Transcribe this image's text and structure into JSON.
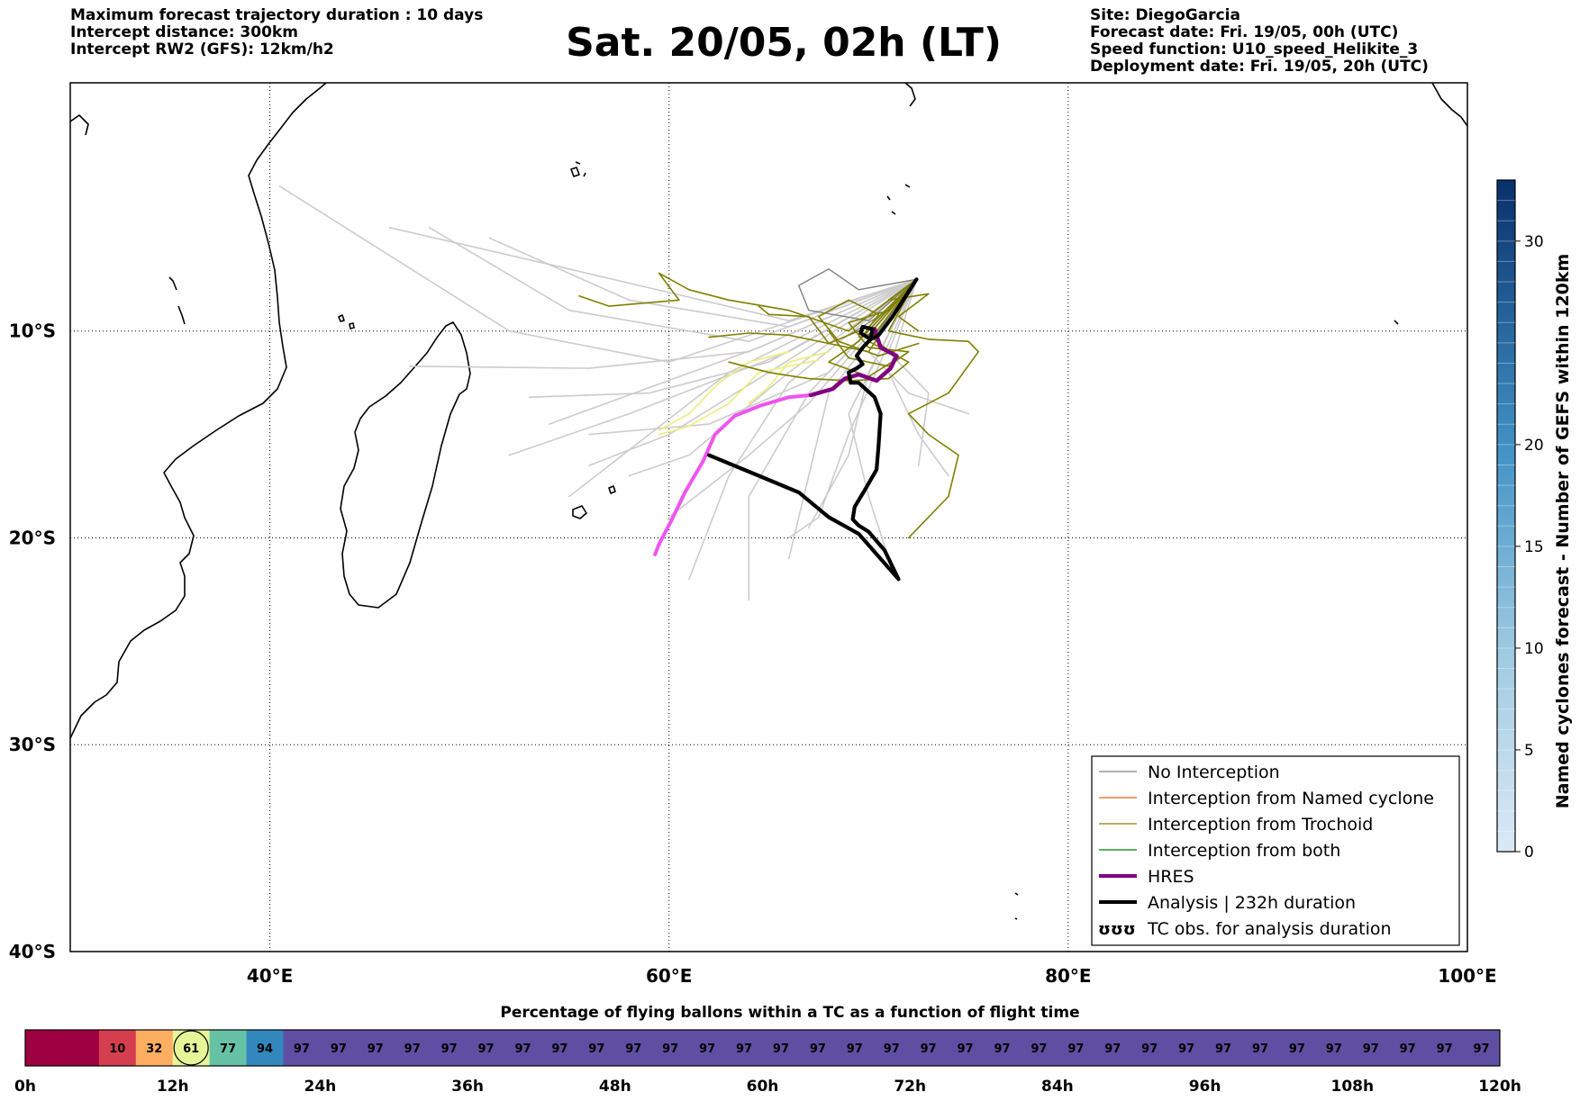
{
  "header": {
    "left_lines": [
      "Maximum forecast trajectory duration : 10 days",
      "Intercept distance: 300km",
      "Intercept RW2 (GFS):  12km/h2"
    ],
    "title": "Sat. 20/05, 02h (LT)",
    "right_lines": [
      "Site: DiegoGarcia",
      "Forecast date: Fri. 19/05, 00h (UTC)",
      "Speed function: U10_speed_Helikite_3",
      "Deployment date: Fri. 19/05, 20h (UTC)"
    ]
  },
  "map": {
    "lon_range": [
      30,
      100
    ],
    "lat_range": [
      -40,
      2
    ],
    "lon_ticks": [
      {
        "value": 40,
        "label": "40°E"
      },
      {
        "value": 60,
        "label": "60°E"
      },
      {
        "value": 80,
        "label": "80°E"
      },
      {
        "value": 100,
        "label": "100°E"
      }
    ],
    "lat_ticks": [
      {
        "value": -10,
        "label": "10°S"
      },
      {
        "value": -20,
        "label": "20°S"
      },
      {
        "value": -30,
        "label": "30°S"
      },
      {
        "value": -40,
        "label": "40°S"
      }
    ],
    "land_color": "#000000",
    "tracks": {
      "no_interception": [
        [
          [
            72.4,
            -7.5
          ],
          [
            64.5,
            -10.8
          ],
          [
            54,
            -14.5
          ]
        ],
        [
          [
            72.4,
            -7.5
          ],
          [
            63,
            -12
          ],
          [
            55,
            -18
          ]
        ],
        [
          [
            72.4,
            -7.5
          ],
          [
            66,
            -12
          ],
          [
            61,
            -16
          ],
          [
            58,
            -17
          ]
        ],
        [
          [
            72.4,
            -7.5
          ],
          [
            65,
            -11.5
          ],
          [
            59,
            -13
          ],
          [
            53,
            -13.2
          ]
        ],
        [
          [
            72.4,
            -7.5
          ],
          [
            66,
            -12.5
          ],
          [
            63,
            -17
          ],
          [
            61,
            -22
          ]
        ],
        [
          [
            72.4,
            -7.5
          ],
          [
            67,
            -13
          ],
          [
            64,
            -18
          ],
          [
            64,
            -23
          ]
        ],
        [
          [
            72.4,
            -7.5
          ],
          [
            68,
            -13
          ],
          [
            67,
            -17
          ],
          [
            66,
            -21
          ]
        ],
        [
          [
            72.4,
            -7.5
          ],
          [
            69,
            -14
          ],
          [
            70,
            -18
          ],
          [
            71,
            -21
          ]
        ],
        [
          [
            72.4,
            -7.5
          ],
          [
            71,
            -12
          ],
          [
            72.5,
            -15
          ],
          [
            74,
            -17
          ]
        ],
        [
          [
            72.4,
            -7.5
          ],
          [
            70,
            -11
          ],
          [
            72,
            -13
          ],
          [
            75,
            -14
          ]
        ],
        [
          [
            72.4,
            -7.5
          ],
          [
            66,
            -9.5
          ],
          [
            55,
            -7
          ],
          [
            46,
            -5
          ]
        ],
        [
          [
            72.4,
            -7.5
          ],
          [
            66,
            -9.8
          ],
          [
            58,
            -8.5
          ],
          [
            51,
            -5.5
          ]
        ],
        [
          [
            72.4,
            -7.5
          ],
          [
            64,
            -10.5
          ],
          [
            55,
            -9
          ],
          [
            48,
            -5
          ]
        ],
        [
          [
            72.4,
            -7.5
          ],
          [
            60,
            -11.5
          ],
          [
            52,
            -10
          ],
          [
            40.5,
            -3
          ]
        ],
        [
          [
            72.4,
            -7.5
          ],
          [
            64,
            -11
          ],
          [
            56,
            -11.8
          ],
          [
            47,
            -11.7
          ]
        ],
        [
          [
            72.4,
            -7.5
          ],
          [
            65,
            -12
          ],
          [
            60,
            -15
          ],
          [
            56,
            -16.5
          ]
        ],
        [
          [
            72.4,
            -7.5
          ],
          [
            67,
            -13.5
          ],
          [
            64,
            -16
          ],
          [
            60,
            -19
          ]
        ],
        [
          [
            72.4,
            -7.5
          ],
          [
            69,
            -15
          ],
          [
            67.5,
            -19
          ],
          [
            66,
            -20
          ]
        ],
        [
          [
            72.4,
            -7.5
          ],
          [
            66,
            -11
          ],
          [
            58,
            -14
          ],
          [
            52,
            -16
          ]
        ],
        [
          [
            72.4,
            -7.5
          ],
          [
            68,
            -12
          ],
          [
            62,
            -14.5
          ],
          [
            56,
            -15
          ]
        ],
        [
          [
            72.4,
            -7.5
          ],
          [
            70,
            -12
          ],
          [
            69,
            -16
          ],
          [
            67,
            -19.5
          ]
        ],
        [
          [
            72.4,
            -7.5
          ],
          [
            71,
            -11
          ],
          [
            73,
            -13
          ],
          [
            72.5,
            -16.5
          ]
        ]
      ],
      "dark_gray": [
        [
          [
            72.4,
            -7.5
          ],
          [
            70,
            -9.5
          ],
          [
            67,
            -9
          ],
          [
            66.5,
            -7.8
          ],
          [
            68,
            -7
          ],
          [
            69.5,
            -8
          ],
          [
            72.4,
            -7.5
          ]
        ],
        [
          [
            72.4,
            -7.5
          ],
          [
            70.5,
            -10
          ],
          [
            69.5,
            -10.3
          ]
        ],
        [
          [
            72.4,
            -7.5
          ],
          [
            71,
            -9
          ],
          [
            69,
            -10.2
          ]
        ]
      ],
      "trochoid": [
        [
          [
            72.4,
            -7.5
          ],
          [
            69,
            -10
          ],
          [
            66,
            -9
          ],
          [
            63,
            -8.5
          ],
          [
            61,
            -8
          ],
          [
            59.5,
            -7.2
          ],
          [
            60.5,
            -8.5
          ],
          [
            57,
            -8.8
          ],
          [
            55.5,
            -8.3
          ]
        ],
        [
          [
            72.4,
            -7.5
          ],
          [
            70,
            -9.8
          ],
          [
            68,
            -10.6
          ],
          [
            66,
            -10.2
          ],
          [
            64,
            -10.1
          ],
          [
            62,
            -10.3
          ]
        ],
        [
          [
            72.4,
            -7.5
          ],
          [
            71,
            -10
          ],
          [
            73,
            -10.4
          ],
          [
            75,
            -10.5
          ],
          [
            75.5,
            -11
          ],
          [
            74,
            -13
          ],
          [
            72,
            -14
          ],
          [
            73,
            -15
          ],
          [
            74.5,
            -16
          ],
          [
            74,
            -18
          ],
          [
            72,
            -20
          ]
        ],
        [
          [
            72.4,
            -7.5
          ],
          [
            70,
            -10.5
          ],
          [
            72,
            -11.5
          ],
          [
            71,
            -12.3
          ],
          [
            69,
            -12.4
          ],
          [
            67,
            -12.3
          ],
          [
            65,
            -12
          ],
          [
            63,
            -11.5
          ]
        ],
        [
          [
            72.4,
            -7.5
          ],
          [
            70,
            -11
          ],
          [
            68,
            -10.6
          ],
          [
            67,
            -9.3
          ],
          [
            65,
            -9.2
          ],
          [
            64.5,
            -8.8
          ]
        ],
        [
          [
            72.4,
            -7.5
          ],
          [
            71,
            -8.5
          ],
          [
            73,
            -8.2
          ],
          [
            71.5,
            -9.3
          ],
          [
            72.5,
            -10
          ]
        ],
        [
          [
            72.4,
            -7.5
          ],
          [
            69.5,
            -10.5
          ],
          [
            70.5,
            -9.2
          ],
          [
            69,
            -8.5
          ],
          [
            67.5,
            -9.3
          ],
          [
            68.5,
            -10.5
          ],
          [
            70.5,
            -11.2
          ],
          [
            72.5,
            -10.6
          ]
        ],
        [
          [
            72.4,
            -7.5
          ],
          [
            70,
            -10.2
          ],
          [
            71.5,
            -11.3
          ],
          [
            70,
            -12.2
          ],
          [
            68,
            -11.5
          ],
          [
            69.5,
            -10.5
          ]
        ],
        [
          [
            72.4,
            -7.5
          ],
          [
            71,
            -9
          ],
          [
            69,
            -9.6
          ],
          [
            70,
            -10.8
          ],
          [
            72,
            -11
          ],
          [
            71,
            -11.7
          ],
          [
            69,
            -11.3
          ],
          [
            68,
            -10
          ]
        ]
      ],
      "light_yellow": [
        [
          [
            68,
            -11
          ],
          [
            66,
            -11.5
          ],
          [
            65,
            -12.7
          ],
          [
            64,
            -13.5
          ]
        ],
        [
          [
            67.5,
            -11.4
          ],
          [
            64.5,
            -12
          ],
          [
            63,
            -13.5
          ],
          [
            61,
            -14.6
          ],
          [
            59.5,
            -15
          ]
        ],
        [
          [
            66,
            -11
          ],
          [
            64,
            -11.5
          ],
          [
            62.5,
            -12.5
          ],
          [
            61,
            -14
          ],
          [
            59.5,
            -14.8
          ]
        ]
      ],
      "hres": [
        [
          70.3,
          -9.9
        ],
        [
          70.6,
          -10.8
        ],
        [
          71.4,
          -11.2
        ],
        [
          71.1,
          -11.8
        ],
        [
          70.4,
          -12.4
        ],
        [
          69.5,
          -12.1
        ],
        [
          68.8,
          -12.3
        ],
        [
          68.2,
          -12.8
        ],
        [
          67.1,
          -13.1
        ],
        [
          66,
          -13.2
        ],
        [
          64.6,
          -13.6
        ],
        [
          63.3,
          -14.1
        ],
        [
          62.3,
          -15
        ],
        [
          61.7,
          -16.3
        ],
        [
          60.8,
          -17.8
        ],
        [
          60.1,
          -19.2
        ],
        [
          59.5,
          -20.3
        ],
        [
          59.3,
          -20.8
        ]
      ],
      "analysis": [
        [
          72.4,
          -7.5
        ],
        [
          71.2,
          -9.3
        ],
        [
          70.5,
          -10.2
        ],
        [
          70.1,
          -10.4
        ],
        [
          69.6,
          -10.1
        ],
        [
          69.7,
          -9.8
        ],
        [
          70.2,
          -9.9
        ],
        [
          70.1,
          -10.4
        ],
        [
          69.7,
          -10.8
        ],
        [
          69.4,
          -11.2
        ],
        [
          69.7,
          -11.6
        ],
        [
          69.4,
          -11.8
        ],
        [
          69,
          -12
        ],
        [
          69.1,
          -12.5
        ],
        [
          69.5,
          -12.5
        ],
        [
          70.3,
          -13.2
        ],
        [
          70.6,
          -14
        ],
        [
          70.5,
          -15.5
        ],
        [
          70.4,
          -16.7
        ],
        [
          69.8,
          -17.7
        ],
        [
          69.3,
          -18.5
        ],
        [
          69.2,
          -19.1
        ],
        [
          69.5,
          -19.4
        ],
        [
          70,
          -19.7
        ],
        [
          70.8,
          -20.6
        ],
        [
          71.5,
          -22
        ],
        [
          69.5,
          -19.8
        ],
        [
          68,
          -19
        ],
        [
          66.5,
          -17.8
        ],
        [
          64.5,
          -17
        ],
        [
          62,
          -16
        ]
      ]
    },
    "legend": {
      "items": [
        {
          "label": "No Interception",
          "color": "#808080",
          "width": 1.2
        },
        {
          "label": "Interception from Named cyclone",
          "color": "#e8601c",
          "width": 1.2
        },
        {
          "label": "Interception from Trochoid",
          "color": "#808000",
          "width": 1.2
        },
        {
          "label": "Interception from both",
          "color": "#008000",
          "width": 1.2
        },
        {
          "label": "HRES",
          "color": "#800080",
          "width": 4
        },
        {
          "label": "Analysis | 232h duration",
          "color": "#000000",
          "width": 4
        },
        {
          "label": "TC obs. for analysis duration",
          "color": "#000000",
          "width": 0,
          "symbol": "ʊʊʊ"
        }
      ]
    },
    "colors": {
      "no_interception": "#cccccc",
      "dark_gray": "#808080",
      "trochoid": "#808000",
      "light_yellow": "#eeee88",
      "hres_primary": "#800080",
      "hres_secondary": "#ee55ee",
      "analysis": "#000000"
    }
  },
  "colorbar": {
    "label": "Named cyclones forecast - Number of GEFS within 120km",
    "min": 0,
    "max": 33,
    "ticks": [
      0,
      5,
      10,
      15,
      20,
      30
    ],
    "start_color": "#dbe9f6",
    "end_color": "#08306b"
  },
  "timebar": {
    "title": "Percentage of flying ballons within a TC as a function of flight time",
    "cells": [
      null,
      null,
      10,
      32,
      61,
      77,
      94,
      97,
      97,
      97,
      97,
      97,
      97,
      97,
      97,
      97,
      97,
      97,
      97,
      97,
      97,
      97,
      97,
      97,
      97,
      97,
      97,
      97,
      97,
      97,
      97,
      97,
      97,
      97,
      97,
      97,
      97,
      97,
      97,
      97
    ],
    "highlight_index": 4,
    "tick_labels": [
      "0h",
      "12h",
      "24h",
      "36h",
      "48h",
      "60h",
      "72h",
      "84h",
      "96h",
      "108h",
      "120h"
    ]
  }
}
